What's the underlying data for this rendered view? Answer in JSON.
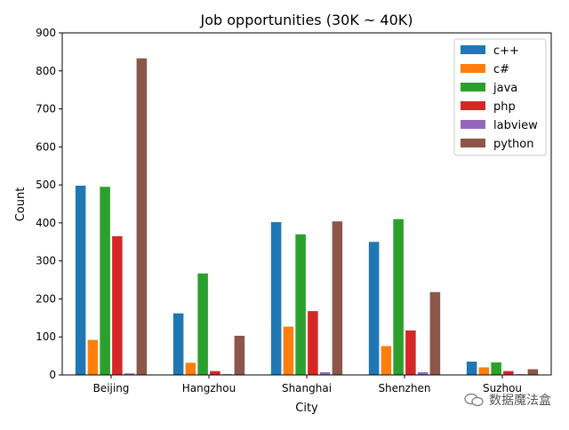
{
  "chart_data": {
    "type": "bar",
    "title": "Job opportunities (30K ~ 40K)",
    "xlabel": "City",
    "ylabel": "Count",
    "ylim": [
      0,
      900
    ],
    "yticks": [
      0,
      100,
      200,
      300,
      400,
      500,
      600,
      700,
      800,
      900
    ],
    "categories": [
      "Beijing",
      "Hangzhou",
      "Shanghai",
      "Shenzhen",
      "Suzhou"
    ],
    "series": [
      {
        "name": "c++",
        "color": "#1f77b4",
        "values": [
          498,
          162,
          402,
          350,
          35
        ]
      },
      {
        "name": "c#",
        "color": "#ff7f0e",
        "values": [
          92,
          32,
          127,
          76,
          20
        ]
      },
      {
        "name": "java",
        "color": "#2ca02c",
        "values": [
          495,
          267,
          370,
          410,
          33
        ]
      },
      {
        "name": "php",
        "color": "#d62728",
        "values": [
          365,
          10,
          168,
          117,
          10
        ]
      },
      {
        "name": "labview",
        "color": "#9467bd",
        "values": [
          4,
          2,
          7,
          7,
          2
        ]
      },
      {
        "name": "python",
        "color": "#8c564b",
        "values": [
          833,
          103,
          404,
          218,
          15
        ]
      }
    ],
    "legend_position": "top-right",
    "grid": false
  },
  "watermark": {
    "text": "数据魔法盒"
  }
}
